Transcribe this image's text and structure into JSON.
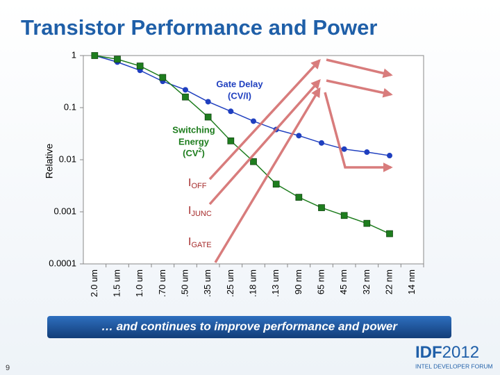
{
  "chart_data": {
    "type": "line",
    "title": "Transistor Performance and Power",
    "y_label": "Relative",
    "log_y": true,
    "categories": [
      "2.0 um",
      "1.5 um",
      "1.0 um",
      ".70 um",
      ".50 um",
      ".35 um",
      ".25 um",
      ".18 um",
      ".13 um",
      "90 nm",
      "65 nm",
      "45 nm",
      "32 nm",
      "22 nm",
      "14 nm"
    ],
    "series": [
      {
        "name": "Gate Delay",
        "color": "#1f3fbf",
        "marker": "circle",
        "values": [
          1,
          0.75,
          0.52,
          0.32,
          0.22,
          0.13,
          0.085,
          0.055,
          0.038,
          0.029,
          0.021,
          0.016,
          0.014,
          0.012,
          null
        ]
      },
      {
        "name": "Switching Energy",
        "color": "#1e7d1e",
        "marker": "square",
        "values": [
          1,
          0.85,
          0.63,
          0.38,
          0.16,
          0.066,
          0.023,
          0.0092,
          0.0034,
          0.0019,
          0.0012,
          0.00085,
          0.0006,
          0.00038,
          null
        ]
      }
    ],
    "ylim": [
      0.0001,
      1
    ],
    "yticks": [
      1,
      0.1,
      0.01,
      0.001,
      0.0001
    ],
    "annotations": {
      "gate_delay": [
        "Gate Delay",
        "(CV/I)"
      ],
      "switching_energy": [
        "Switching",
        "Energy",
        "(CV",
        "2",
        ")"
      ],
      "currents": [
        {
          "main": "I",
          "sub": "OFF"
        },
        {
          "main": "I",
          "sub": "JUNC"
        },
        {
          "main": "I",
          "sub": "GATE"
        }
      ]
    }
  },
  "banner": "… and continues to improve performance and power",
  "page_number": "9",
  "logo": {
    "main": "IDF",
    "year": "2012",
    "tagline": "INTEL DEVELOPER FORUM"
  }
}
